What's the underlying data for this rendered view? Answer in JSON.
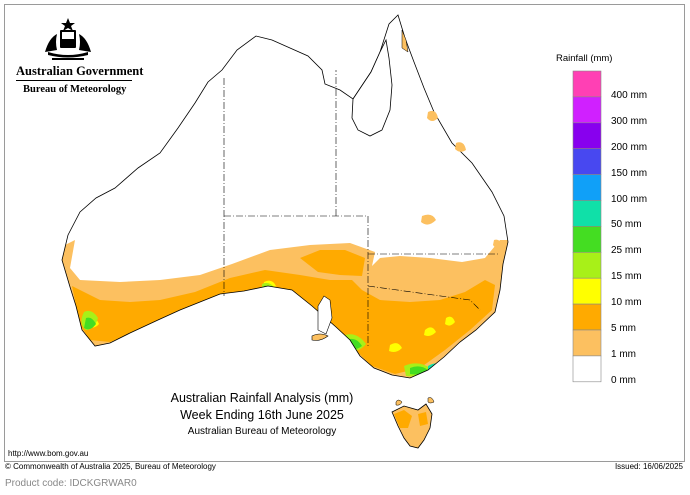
{
  "header": {
    "logo": "commonwealth-coat-of-arms",
    "government": "Australian Government",
    "bureau": "Bureau of Meteorology"
  },
  "map": {
    "title_line1": "Australian Rainfall Analysis (mm)",
    "title_line2": "Week Ending 16th June 2025",
    "title_line3": "Australian Bureau of Meteorology"
  },
  "legend": {
    "title": "Rainfall (mm)",
    "items": [
      {
        "label": "400 mm",
        "color": "#ff40b4"
      },
      {
        "label": "300 mm",
        "color": "#d020ff"
      },
      {
        "label": "200 mm",
        "color": "#8800ee"
      },
      {
        "label": "150 mm",
        "color": "#4848f0"
      },
      {
        "label": "100 mm",
        "color": "#10a0f8"
      },
      {
        "label": "50 mm",
        "color": "#10e0a8"
      },
      {
        "label": "25 mm",
        "color": "#44dd22"
      },
      {
        "label": "15 mm",
        "color": "#a8f018"
      },
      {
        "label": "10 mm",
        "color": "#ffff00"
      },
      {
        "label": "5 mm",
        "color": "#ffaa00"
      },
      {
        "label": "1 mm",
        "color": "#fcc060"
      },
      {
        "label": "0 mm",
        "color": "#ffffff"
      }
    ]
  },
  "footer": {
    "url": "http://www.bom.gov.au",
    "copyright": "© Commonwealth of Australia 2025, Bureau of Meteorology",
    "issued": "Issued: 16/06/2025",
    "product_code": "Product code: IDCKGRWAR0"
  }
}
